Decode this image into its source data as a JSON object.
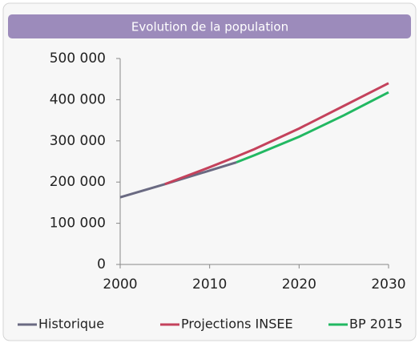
{
  "chart_data": {
    "type": "line",
    "title": "Evolution de la population",
    "x": [
      2000,
      2005,
      2010,
      2013,
      2015,
      2020,
      2025,
      2030
    ],
    "series": [
      {
        "name": "Historique",
        "color": "#6a6a82",
        "values": [
          163000,
          195000,
          228000,
          248000,
          null,
          null,
          null,
          null
        ]
      },
      {
        "name": "Projections INSEE",
        "color": "#c4425c",
        "values": [
          null,
          195000,
          236000,
          262000,
          280000,
          330000,
          385000,
          440000
        ]
      },
      {
        "name": "BP 2015",
        "color": "#22b862",
        "values": [
          null,
          null,
          null,
          248000,
          265000,
          310000,
          362000,
          418000
        ]
      }
    ],
    "xlim": [
      2000,
      2030
    ],
    "xticks": [
      2000,
      2010,
      2020,
      2030
    ],
    "ylim": [
      0,
      500000
    ],
    "yticks": [
      0,
      {
        "value": 100000,
        "label": "100 000"
      },
      {
        "value": 200000,
        "label": "200 000"
      },
      {
        "value": 300000,
        "label": "300 000"
      },
      {
        "value": 400000,
        "label": "400 000"
      },
      {
        "value": 500000,
        "label": "500 000"
      }
    ],
    "grid": false,
    "legend": "bottom"
  }
}
